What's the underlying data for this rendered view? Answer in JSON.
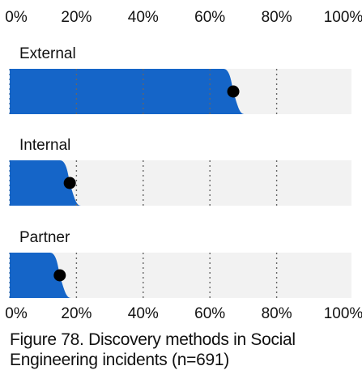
{
  "chart_data": {
    "type": "bar",
    "orientation": "horizontal",
    "title": "",
    "xlabel": "",
    "ylabel": "",
    "xlim": [
      0,
      100
    ],
    "x_ticks": [
      "0%",
      "20%",
      "40%",
      "60%",
      "80%",
      "100%"
    ],
    "tick_positions": [
      "top",
      "bottom"
    ],
    "gridlines": "dotted-vertical",
    "categories": [
      "External",
      "Internal",
      "Partner"
    ],
    "values": [
      67,
      18,
      15
    ],
    "style": "slanted-edge bar with point-estimate dot",
    "colors": {
      "bar": "#1565c8",
      "track": "#f2f2f2",
      "dot": "#000000",
      "grid": "#666666"
    }
  },
  "caption": {
    "line1": "Figure 78. Discovery methods in Social",
    "line2": "Engineering incidents (n=691)"
  }
}
